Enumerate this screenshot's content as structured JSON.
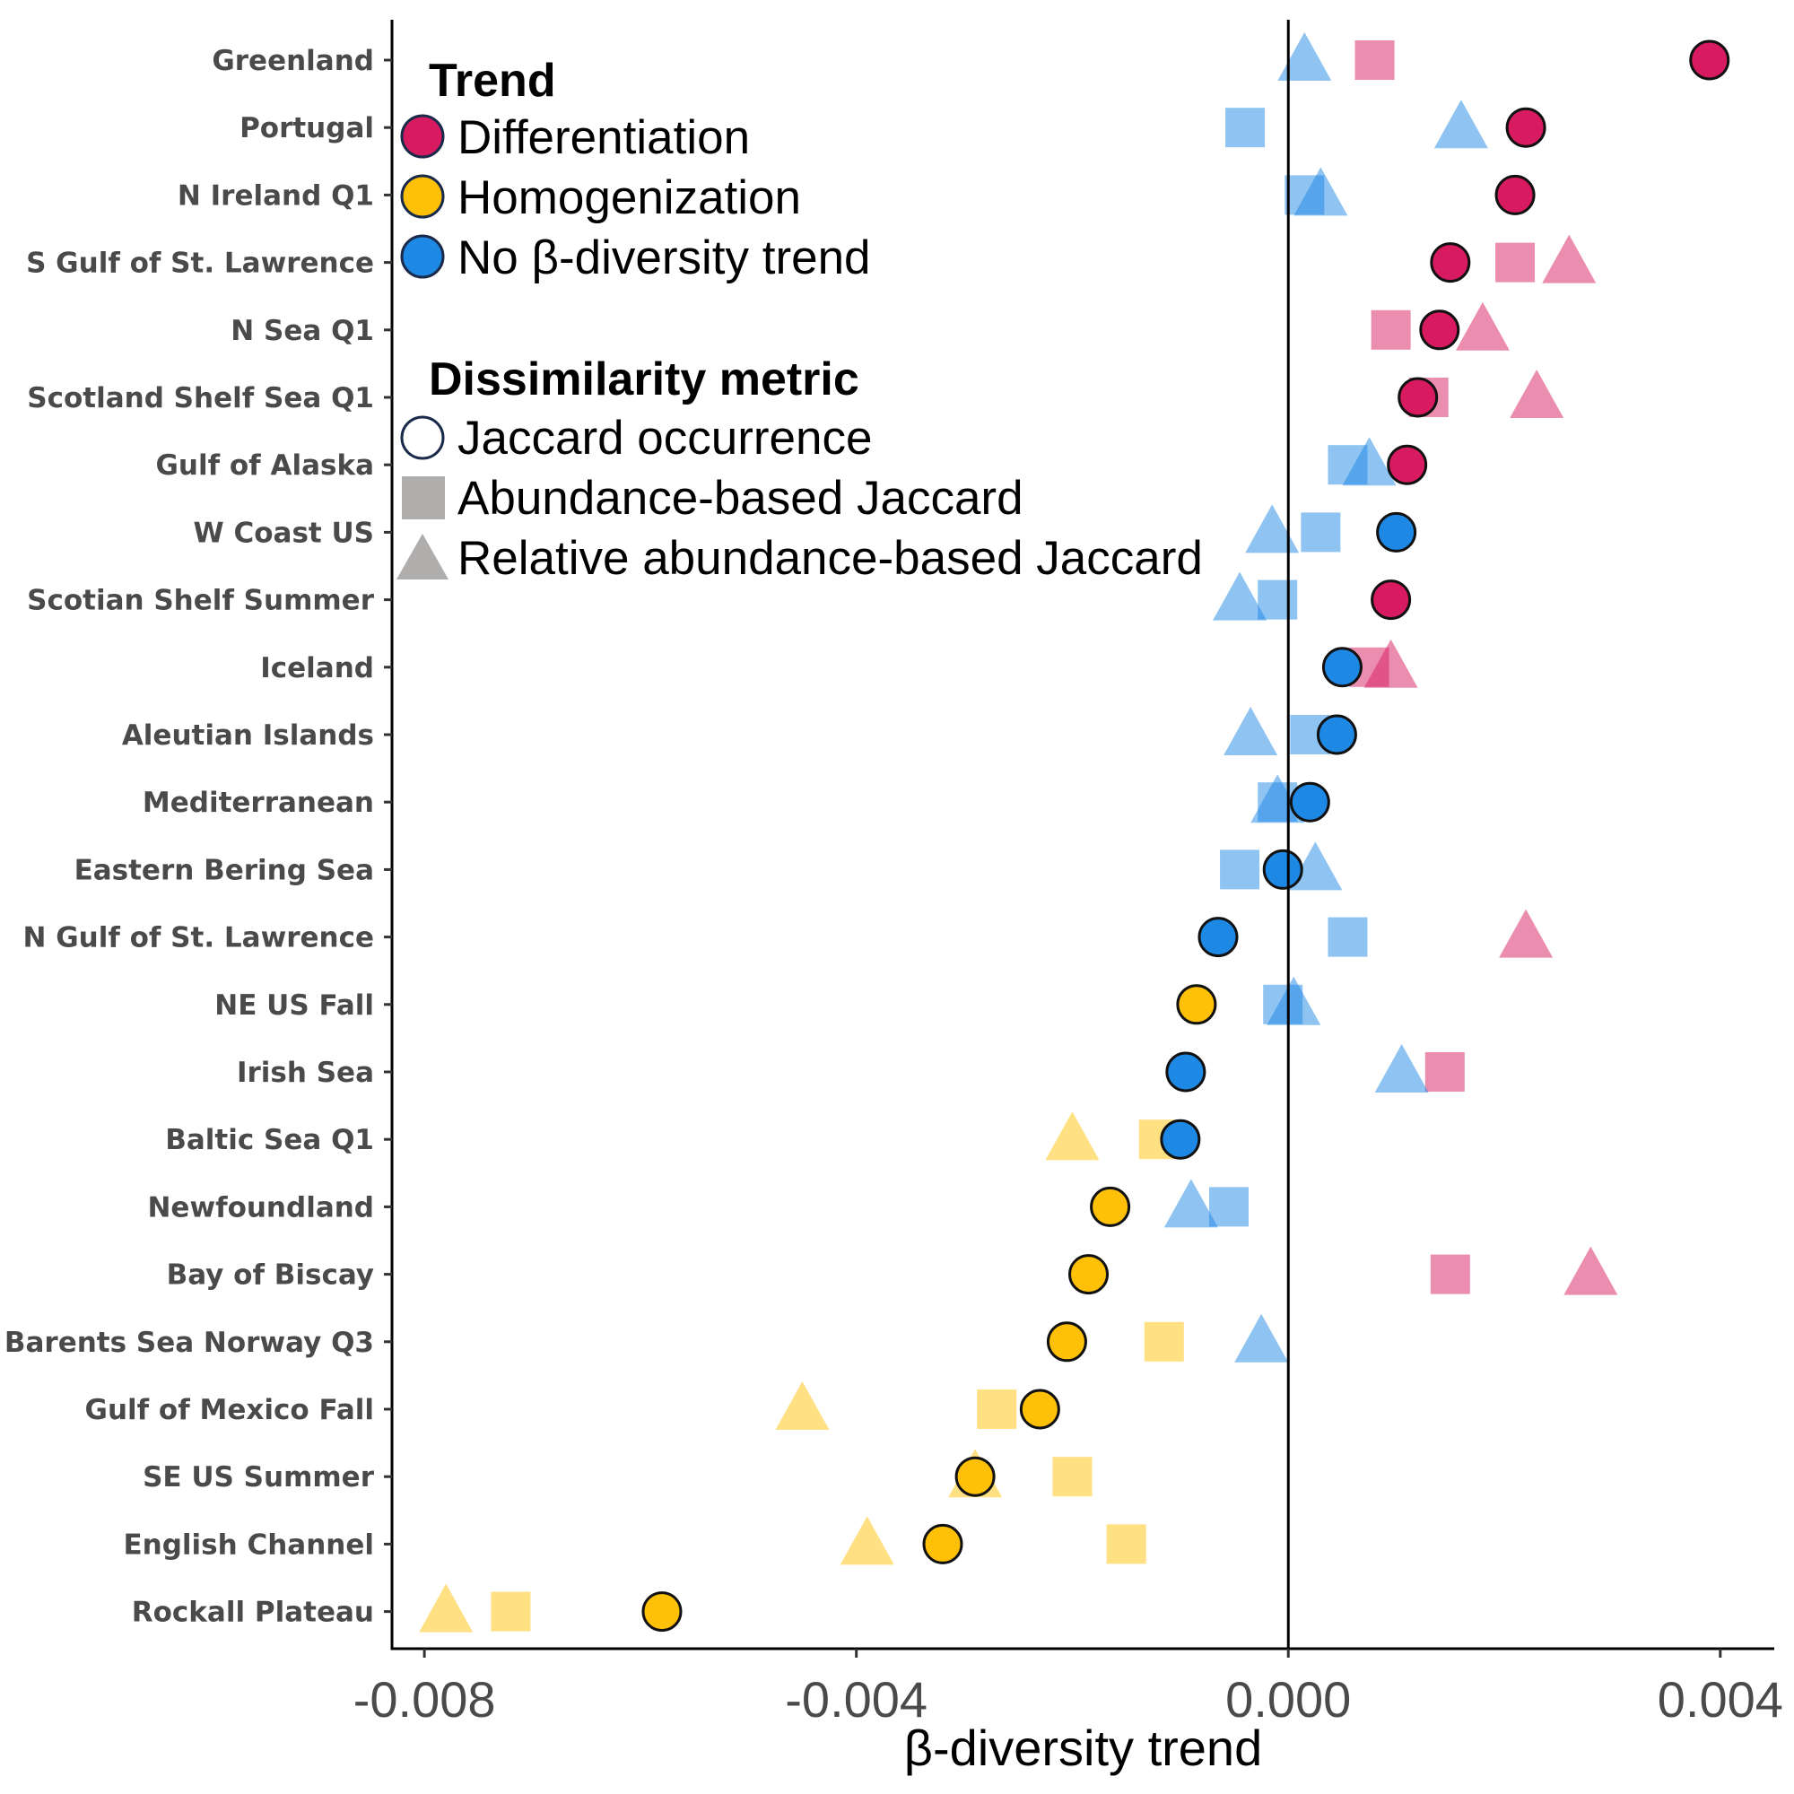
{
  "chart_data": {
    "type": "scatter",
    "xlabel": "β-diversity trend",
    "ylabel": "",
    "xlim": [
      -0.0083,
      0.0045
    ],
    "xticks": [
      -0.008,
      -0.004,
      0.0,
      0.004
    ],
    "xtick_labels": [
      "-0.008",
      "-0.004",
      "0.000",
      "0.004"
    ],
    "reference_line_x": 0.0,
    "grid": false,
    "legend_position": "top-left",
    "categories": [
      "Greenland",
      "Portugal",
      "N Ireland Q1",
      "S Gulf of St. Lawrence",
      "N Sea Q1",
      "Scotland Shelf Sea Q1",
      "Gulf of Alaska",
      "W Coast US",
      "Scotian Shelf Summer",
      "Iceland",
      "Aleutian Islands",
      "Mediterranean",
      "Eastern Bering Sea",
      "N Gulf of St. Lawrence",
      "NE US Fall",
      "Irish Sea",
      "Baltic Sea Q1",
      "Newfoundland",
      "Bay of Biscay",
      "Barents Sea Norway Q3",
      "Gulf of Mexico Fall",
      "SE US Summer",
      "English Channel",
      "Rockall Plateau"
    ],
    "legend": {
      "trend_title": "Trend",
      "trend_items": [
        {
          "key": "diff",
          "label": "Differentiation",
          "color": "#d81b60"
        },
        {
          "key": "homo",
          "label": "Homogenization",
          "color": "#ffc107"
        },
        {
          "key": "none",
          "label": "No β-diversity trend",
          "color": "#1e88e5"
        }
      ],
      "metric_title": "Dissimilarity metric",
      "metric_items": [
        {
          "key": "jaccard",
          "label": "Jaccard occurrence",
          "shape": "circle"
        },
        {
          "key": "abund",
          "label": "Abundance-based Jaccard",
          "shape": "square"
        },
        {
          "key": "rel",
          "label": "Relative abundance-based Jaccard",
          "shape": "triangle"
        }
      ]
    },
    "series": [
      {
        "metric": "jaccard",
        "shape": "circle",
        "points": [
          {
            "category": "Greenland",
            "x": 0.0039,
            "trend": "diff"
          },
          {
            "category": "Portugal",
            "x": 0.0022,
            "trend": "diff"
          },
          {
            "category": "N Ireland Q1",
            "x": 0.0021,
            "trend": "diff"
          },
          {
            "category": "S Gulf of St. Lawrence",
            "x": 0.0015,
            "trend": "diff"
          },
          {
            "category": "N Sea Q1",
            "x": 0.0014,
            "trend": "diff"
          },
          {
            "category": "Scotland Shelf Sea Q1",
            "x": 0.0012,
            "trend": "diff"
          },
          {
            "category": "Gulf of Alaska",
            "x": 0.0011,
            "trend": "diff"
          },
          {
            "category": "W Coast US",
            "x": 0.001,
            "trend": "none"
          },
          {
            "category": "Scotian Shelf Summer",
            "x": 0.00095,
            "trend": "diff"
          },
          {
            "category": "Iceland",
            "x": 0.0005,
            "trend": "none"
          },
          {
            "category": "Aleutian Islands",
            "x": 0.00045,
            "trend": "none"
          },
          {
            "category": "Mediterranean",
            "x": 0.0002,
            "trend": "none"
          },
          {
            "category": "Eastern Bering Sea",
            "x": -5e-05,
            "trend": "none"
          },
          {
            "category": "N Gulf of St. Lawrence",
            "x": -0.00065,
            "trend": "none"
          },
          {
            "category": "NE US Fall",
            "x": -0.00085,
            "trend": "homo"
          },
          {
            "category": "Irish Sea",
            "x": -0.00095,
            "trend": "none"
          },
          {
            "category": "Baltic Sea Q1",
            "x": -0.001,
            "trend": "none"
          },
          {
            "category": "Newfoundland",
            "x": -0.00165,
            "trend": "homo"
          },
          {
            "category": "Bay of Biscay",
            "x": -0.00185,
            "trend": "homo"
          },
          {
            "category": "Barents Sea Norway Q3",
            "x": -0.00205,
            "trend": "homo"
          },
          {
            "category": "Gulf of Mexico Fall",
            "x": -0.0023,
            "trend": "homo"
          },
          {
            "category": "SE US Summer",
            "x": -0.0029,
            "trend": "homo"
          },
          {
            "category": "English Channel",
            "x": -0.0032,
            "trend": "homo"
          },
          {
            "category": "Rockall Plateau",
            "x": -0.0058,
            "trend": "homo"
          }
        ]
      },
      {
        "metric": "abund",
        "shape": "square",
        "points": [
          {
            "category": "Greenland",
            "x": 0.0008,
            "trend": "diff"
          },
          {
            "category": "Portugal",
            "x": -0.0004,
            "trend": "none"
          },
          {
            "category": "N Ireland Q1",
            "x": 0.00015,
            "trend": "none"
          },
          {
            "category": "S Gulf of St. Lawrence",
            "x": 0.0021,
            "trend": "diff"
          },
          {
            "category": "N Sea Q1",
            "x": 0.00095,
            "trend": "diff"
          },
          {
            "category": "Scotland Shelf Sea Q1",
            "x": 0.0013,
            "trend": "diff"
          },
          {
            "category": "Gulf of Alaska",
            "x": 0.00055,
            "trend": "none"
          },
          {
            "category": "W Coast US",
            "x": 0.0003,
            "trend": "none"
          },
          {
            "category": "Scotian Shelf Summer",
            "x": -0.0001,
            "trend": "none"
          },
          {
            "category": "Iceland",
            "x": 0.00075,
            "trend": "diff"
          },
          {
            "category": "Aleutian Islands",
            "x": 0.0002,
            "trend": "none"
          },
          {
            "category": "Mediterranean",
            "x": -0.0001,
            "trend": "none"
          },
          {
            "category": "Eastern Bering Sea",
            "x": -0.00045,
            "trend": "none"
          },
          {
            "category": "N Gulf of St. Lawrence",
            "x": 0.00055,
            "trend": "none"
          },
          {
            "category": "NE US Fall",
            "x": -5e-05,
            "trend": "none"
          },
          {
            "category": "Irish Sea",
            "x": 0.00145,
            "trend": "diff"
          },
          {
            "category": "Baltic Sea Q1",
            "x": -0.0012,
            "trend": "homo"
          },
          {
            "category": "Newfoundland",
            "x": -0.00055,
            "trend": "none"
          },
          {
            "category": "Bay of Biscay",
            "x": 0.0015,
            "trend": "diff"
          },
          {
            "category": "Barents Sea Norway Q3",
            "x": -0.00115,
            "trend": "homo"
          },
          {
            "category": "Gulf of Mexico Fall",
            "x": -0.0027,
            "trend": "homo"
          },
          {
            "category": "SE US Summer",
            "x": -0.002,
            "trend": "homo"
          },
          {
            "category": "English Channel",
            "x": -0.0015,
            "trend": "homo"
          },
          {
            "category": "Rockall Plateau",
            "x": -0.0072,
            "trend": "homo"
          }
        ]
      },
      {
        "metric": "rel",
        "shape": "triangle",
        "points": [
          {
            "category": "Greenland",
            "x": 0.00015,
            "trend": "none"
          },
          {
            "category": "Portugal",
            "x": 0.0016,
            "trend": "none"
          },
          {
            "category": "N Ireland Q1",
            "x": 0.0003,
            "trend": "none"
          },
          {
            "category": "S Gulf of St. Lawrence",
            "x": 0.0026,
            "trend": "diff"
          },
          {
            "category": "N Sea Q1",
            "x": 0.0018,
            "trend": "diff"
          },
          {
            "category": "Scotland Shelf Sea Q1",
            "x": 0.0023,
            "trend": "diff"
          },
          {
            "category": "Gulf of Alaska",
            "x": 0.00075,
            "trend": "none"
          },
          {
            "category": "W Coast US",
            "x": -0.00015,
            "trend": "none"
          },
          {
            "category": "Scotian Shelf Summer",
            "x": -0.00045,
            "trend": "none"
          },
          {
            "category": "Iceland",
            "x": 0.00095,
            "trend": "diff"
          },
          {
            "category": "Aleutian Islands",
            "x": -0.00035,
            "trend": "none"
          },
          {
            "category": "Mediterranean",
            "x": -0.0001,
            "trend": "none"
          },
          {
            "category": "Eastern Bering Sea",
            "x": 0.00025,
            "trend": "none"
          },
          {
            "category": "N Gulf of St. Lawrence",
            "x": 0.0022,
            "trend": "diff"
          },
          {
            "category": "NE US Fall",
            "x": 5e-05,
            "trend": "none"
          },
          {
            "category": "Irish Sea",
            "x": 0.00105,
            "trend": "none"
          },
          {
            "category": "Baltic Sea Q1",
            "x": -0.002,
            "trend": "homo"
          },
          {
            "category": "Newfoundland",
            "x": -0.0009,
            "trend": "none"
          },
          {
            "category": "Bay of Biscay",
            "x": 0.0028,
            "trend": "diff"
          },
          {
            "category": "Barents Sea Norway Q3",
            "x": -0.00025,
            "trend": "none"
          },
          {
            "category": "Gulf of Mexico Fall",
            "x": -0.0045,
            "trend": "homo"
          },
          {
            "category": "SE US Summer",
            "x": -0.0029,
            "trend": "homo"
          },
          {
            "category": "English Channel",
            "x": -0.0039,
            "trend": "homo"
          },
          {
            "category": "Rockall Plateau",
            "x": -0.0078,
            "trend": "homo"
          }
        ]
      }
    ]
  }
}
